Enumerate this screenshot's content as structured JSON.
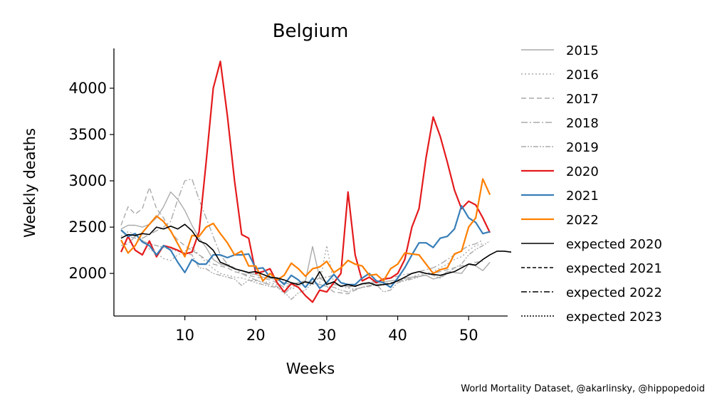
{
  "chart_data": {
    "type": "line",
    "title": "Belgium",
    "xlabel": "Weeks",
    "ylabel": "Weekly deaths",
    "xlim": [
      0,
      55.5
    ],
    "ylim": [
      1540,
      4430
    ],
    "x_ticks": [
      10,
      20,
      30,
      40,
      50
    ],
    "y_ticks": [
      2000,
      2500,
      3000,
      3500,
      4000
    ],
    "grid": false,
    "legend_position": "right",
    "series": [
      {
        "name": "2015",
        "color": "#aaaaaa",
        "dash": "",
        "width": 1.4,
        "values": [
          2480,
          2520,
          2520,
          2500,
          2530,
          2600,
          2720,
          2880,
          2800,
          2680,
          2520,
          2380,
          2280,
          2150,
          2100,
          2080,
          2050,
          2030,
          2000,
          1990,
          1960,
          1950,
          1930,
          1900,
          1880,
          1900,
          1920,
          2290,
          1950,
          1900,
          1880,
          1870,
          1860,
          1870,
          1880,
          1890,
          1900,
          1910,
          1920,
          1930,
          1950,
          1960,
          1970,
          1980,
          1940,
          1960,
          2020,
          2010,
          2000,
          2100,
          2080,
          2030,
          2120
        ]
      },
      {
        "name": "2016",
        "color": "#aaaaaa",
        "dash": "2,3",
        "width": 1.4,
        "values": [
          2400,
          2450,
          2420,
          2360,
          2260,
          2220,
          2160,
          2140,
          2200,
          2240,
          2280,
          2200,
          2120,
          2050,
          2000,
          1980,
          1960,
          1950,
          1930,
          1920,
          1910,
          1900,
          1880,
          1850,
          1830,
          1860,
          1900,
          1880,
          1900,
          2300,
          1880,
          1860,
          1840,
          1830,
          1850,
          1870,
          1880,
          1890,
          1900,
          1920,
          1940,
          1960,
          1990,
          2000,
          2020,
          2060,
          2100,
          2150,
          2180,
          2250,
          2300,
          2320
        ]
      },
      {
        "name": "2017",
        "color": "#aaaaaa",
        "dash": "7,4",
        "width": 1.4,
        "values": [
          2520,
          2720,
          2640,
          2700,
          2930,
          2700,
          2600,
          2450,
          2360,
          2300,
          2250,
          2200,
          2150,
          2100,
          2080,
          2060,
          2020,
          2000,
          1980,
          1960,
          1950,
          1930,
          1900,
          1850,
          1880,
          1900,
          1920,
          1910,
          1880,
          1860,
          1800,
          1790,
          1780,
          1820,
          1850,
          1870,
          1880,
          1890,
          1900,
          1910,
          1930,
          1950,
          1970,
          1980,
          2000,
          2020,
          2040,
          2060,
          2080,
          2100,
          2120,
          2130
        ]
      },
      {
        "name": "2018",
        "color": "#aaaaaa",
        "dash": "9,3,2,3",
        "width": 1.4,
        "values": [
          2300,
          2320,
          2400,
          2380,
          2420,
          2460,
          2500,
          2560,
          2800,
          3000,
          3020,
          2800,
          2600,
          2400,
          2200,
          2100,
          2060,
          2000,
          1960,
          1930,
          1900,
          1880,
          1860,
          1780,
          1850,
          1880,
          1900,
          1920,
          1950,
          1960,
          1980,
          1900,
          1850,
          1870,
          1880,
          1900,
          1920,
          1930,
          1950,
          1970,
          1990,
          2000,
          2020,
          2040,
          2060,
          2100,
          2150,
          2200,
          2250,
          2300,
          2320,
          2360
        ]
      },
      {
        "name": "2019",
        "color": "#aaaaaa",
        "dash": "7,2,2,2,2,2",
        "width": 1.4,
        "values": [
          2460,
          2400,
          2380,
          2350,
          2320,
          2300,
          2280,
          2260,
          2240,
          2220,
          2200,
          2060,
          2050,
          2000,
          1980,
          1960,
          1940,
          1870,
          1930,
          1900,
          1880,
          1860,
          1850,
          1800,
          1720,
          1790,
          1820,
          1900,
          1880,
          1860,
          1850,
          1820,
          1800,
          1830,
          1850,
          1860,
          1880,
          1800,
          1820,
          1900,
          1920,
          1940,
          1960,
          2000,
          1980,
          1950,
          2000,
          2060,
          2100,
          2200,
          2260,
          2300,
          2350
        ]
      },
      {
        "name": "2020",
        "color": "#e41a1c",
        "dash": "",
        "width": 2.2,
        "values": [
          2230,
          2400,
          2250,
          2200,
          2350,
          2180,
          2300,
          2280,
          2250,
          2210,
          2230,
          2450,
          3200,
          4000,
          4290,
          3700,
          3000,
          2420,
          2380,
          2000,
          2020,
          2050,
          1900,
          1800,
          1890,
          1850,
          1760,
          1690,
          1820,
          1800,
          1900,
          2000,
          2880,
          2200,
          1920,
          1960,
          1900,
          1940,
          1950,
          2000,
          2150,
          2500,
          2700,
          3250,
          3690,
          3480,
          3200,
          2900,
          2700,
          2780,
          2740,
          2600,
          2440
        ]
      },
      {
        "name": "2021",
        "color": "#377eb8",
        "dash": "",
        "width": 2.2,
        "values": [
          2470,
          2400,
          2430,
          2340,
          2300,
          2200,
          2300,
          2250,
          2120,
          2010,
          2150,
          2100,
          2100,
          2200,
          2200,
          2170,
          2200,
          2200,
          2210,
          2050,
          2060,
          1960,
          1950,
          1880,
          1980,
          1930,
          1850,
          1950,
          1840,
          1900,
          1990,
          1900,
          1880,
          1880,
          1950,
          2000,
          1920,
          1900,
          1850,
          1950,
          2060,
          2200,
          2330,
          2330,
          2280,
          2380,
          2400,
          2480,
          2730,
          2600,
          2550,
          2430,
          2450
        ]
      },
      {
        "name": "2022",
        "color": "#ff7f00",
        "dash": "",
        "width": 2.2,
        "values": [
          2360,
          2220,
          2300,
          2440,
          2530,
          2620,
          2560,
          2460,
          2320,
          2180,
          2410,
          2400,
          2500,
          2540,
          2430,
          2330,
          2200,
          2240,
          2080,
          2080,
          1920,
          2000,
          1930,
          1980,
          2110,
          2050,
          1970,
          2050,
          2070,
          2130,
          2010,
          2060,
          2140,
          2100,
          2080,
          1980,
          1990,
          1920,
          2050,
          2100,
          2220,
          2210,
          2200,
          2100,
          2000,
          2040,
          2060,
          2210,
          2240,
          2500,
          2600,
          3020,
          2850
        ]
      },
      {
        "name": "expected 2020",
        "color": "#000000",
        "dash": "",
        "width": 1.6,
        "values": [
          2380,
          2420,
          2410,
          2430,
          2420,
          2500,
          2480,
          2510,
          2480,
          2530,
          2460,
          2350,
          2320,
          2250,
          2120,
          2090,
          2050,
          2030,
          2010,
          2020,
          1990,
          1960,
          1950,
          1930,
          1900,
          1880,
          1910,
          1890,
          2020,
          1880,
          1910,
          1860,
          1880,
          1860,
          1890,
          1900,
          1870,
          1880,
          1890,
          1920,
          1960,
          2000,
          2020,
          2000,
          1990,
          1980,
          2000,
          2020,
          2060,
          2100,
          2090,
          2150,
          2200,
          2240,
          2240,
          2230
        ]
      },
      {
        "name": "expected 2021",
        "color": "#000000",
        "dash": "5,3",
        "width": 1.6,
        "values": []
      },
      {
        "name": "expected 2022",
        "color": "#000000",
        "dash": "8,3,2,3",
        "width": 1.6,
        "values": []
      },
      {
        "name": "expected 2023",
        "color": "#000000",
        "dash": "2,2",
        "width": 1.6,
        "values": []
      }
    ]
  },
  "source_note": "World Mortality Dataset, @akarlinsky, @hippopedoid"
}
